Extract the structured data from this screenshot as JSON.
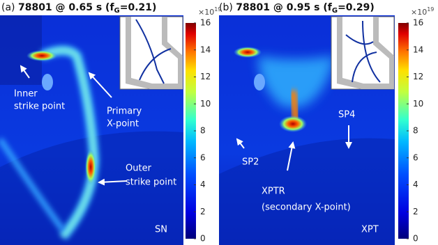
{
  "panels": [
    {
      "label": "(a)",
      "title": "78801 @ 0.65 s (f",
      "title_sub": "G",
      "title_end": "=0.21)",
      "annotations": [
        "Inner",
        "strike point",
        "Primary",
        "X-point",
        "Outer",
        "strike point",
        "SN"
      ]
    },
    {
      "label": "(b)",
      "title": "78801 @ 0.95 s (f",
      "title_sub": "G",
      "title_end": "=0.29)",
      "annotations": [
        "SP2",
        "SP4",
        "XPTR",
        "(secondary X-point)",
        "XPT"
      ]
    }
  ],
  "colorbar": {
    "lim": [
      0,
      16
    ],
    "ticks": [
      0,
      2,
      4,
      6,
      8,
      10,
      12,
      14,
      16
    ],
    "scale": "×10",
    "exponent": "19"
  }
}
